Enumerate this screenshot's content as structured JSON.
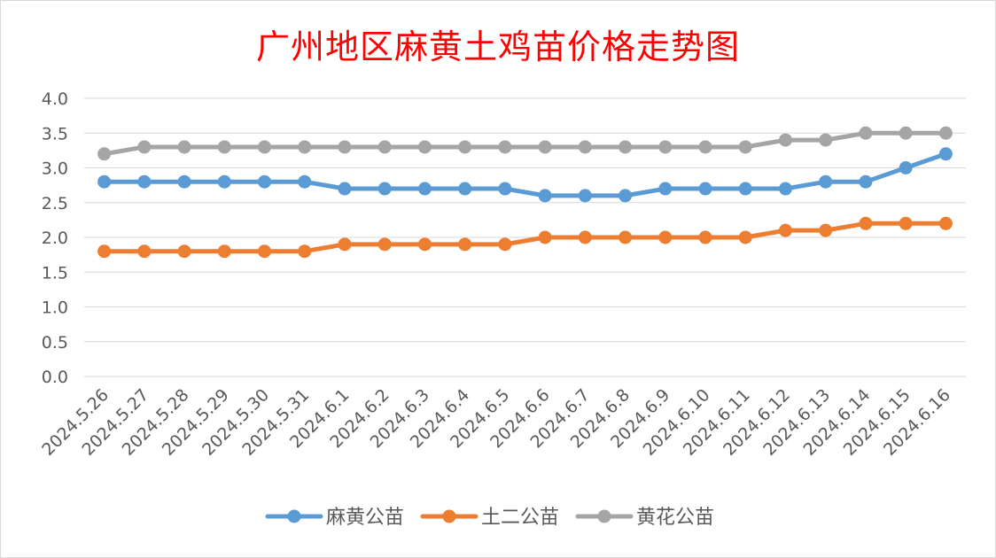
{
  "chart_data": {
    "type": "line",
    "title": "广州地区麻黄土鸡苗价格走势图",
    "xlabel": "",
    "ylabel": "",
    "ylim": [
      0,
      4
    ],
    "yticks": [
      "0.0",
      "0.5",
      "1.0",
      "1.5",
      "2.0",
      "2.5",
      "3.0",
      "3.5",
      "4.0"
    ],
    "grid": true,
    "legend_position": "bottom",
    "categories": [
      "2024.5.26",
      "2024.5.27",
      "2024.5.28",
      "2024.5.29",
      "2024.5.30",
      "2024.5.31",
      "2024.6.1",
      "2024.6.2",
      "2024.6.3",
      "2024.6.4",
      "2024.6.5",
      "2024.6.6",
      "2024.6.7",
      "2024.6.8",
      "2024.6.9",
      "2024.6.10",
      "2024.6.11",
      "2024.6.12",
      "2024.6.13",
      "2024.6.14",
      "2024.6.15",
      "2024.6.16"
    ],
    "series": [
      {
        "name": "麻黄公苗",
        "color": "#5b9bd5",
        "values": [
          2.8,
          2.8,
          2.8,
          2.8,
          2.8,
          2.8,
          2.7,
          2.7,
          2.7,
          2.7,
          2.7,
          2.6,
          2.6,
          2.6,
          2.7,
          2.7,
          2.7,
          2.7,
          2.8,
          2.8,
          3.0,
          3.2
        ]
      },
      {
        "name": "土二公苗",
        "color": "#ed7d31",
        "values": [
          1.8,
          1.8,
          1.8,
          1.8,
          1.8,
          1.8,
          1.9,
          1.9,
          1.9,
          1.9,
          1.9,
          2.0,
          2.0,
          2.0,
          2.0,
          2.0,
          2.0,
          2.1,
          2.1,
          2.2,
          2.2,
          2.2
        ]
      },
      {
        "name": "黄花公苗",
        "color": "#a5a5a5",
        "values": [
          3.2,
          3.3,
          3.3,
          3.3,
          3.3,
          3.3,
          3.3,
          3.3,
          3.3,
          3.3,
          3.3,
          3.3,
          3.3,
          3.3,
          3.3,
          3.3,
          3.3,
          3.4,
          3.4,
          3.5,
          3.5,
          3.5
        ]
      }
    ]
  },
  "colors": {
    "title": "#ff0000",
    "grid": "#d9d9d9",
    "tick_text": "#595959"
  }
}
